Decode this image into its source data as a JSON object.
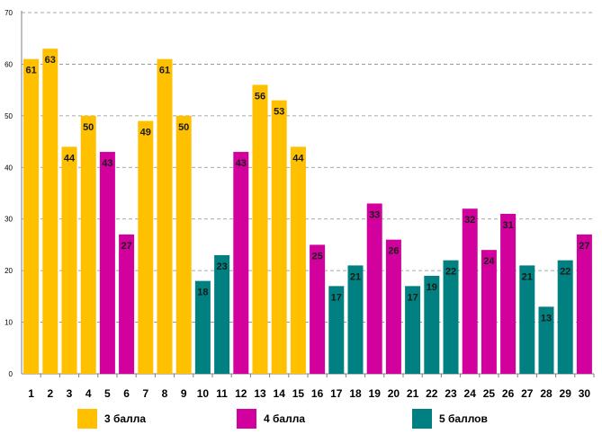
{
  "chart_data": {
    "type": "bar",
    "categories": [
      "1",
      "2",
      "3",
      "4",
      "5",
      "6",
      "7",
      "8",
      "9",
      "10",
      "11",
      "12",
      "13",
      "14",
      "15",
      "16",
      "17",
      "18",
      "19",
      "20",
      "21",
      "22",
      "23",
      "24",
      "25",
      "26",
      "27",
      "28",
      "29",
      "30"
    ],
    "values": [
      61,
      63,
      44,
      50,
      43,
      27,
      49,
      61,
      50,
      18,
      23,
      43,
      56,
      53,
      44,
      25,
      17,
      21,
      33,
      26,
      17,
      19,
      22,
      32,
      24,
      31,
      21,
      13,
      22,
      27
    ],
    "score_group": [
      "3",
      "3",
      "3",
      "3",
      "4",
      "4",
      "3",
      "3",
      "3",
      "5",
      "5",
      "4",
      "3",
      "3",
      "3",
      "4",
      "5",
      "5",
      "4",
      "4",
      "5",
      "5",
      "5",
      "4",
      "4",
      "4",
      "5",
      "5",
      "5",
      "4"
    ],
    "ylim": [
      0,
      70
    ],
    "yticks": [
      0,
      10,
      20,
      30,
      40,
      50,
      60,
      70
    ],
    "grid": true,
    "title": "",
    "xlabel": "",
    "ylabel": "",
    "legend_placement": "bottom",
    "series_colors": {
      "3": "#ffc000",
      "4": "#d2009d",
      "5": "#008080"
    }
  },
  "legend": [
    {
      "key": "3",
      "label": "3 балла",
      "color": "#ffc000"
    },
    {
      "key": "4",
      "label": "4 балла",
      "color": "#d2009d"
    },
    {
      "key": "5",
      "label": "5 баллов",
      "color": "#008080"
    }
  ]
}
